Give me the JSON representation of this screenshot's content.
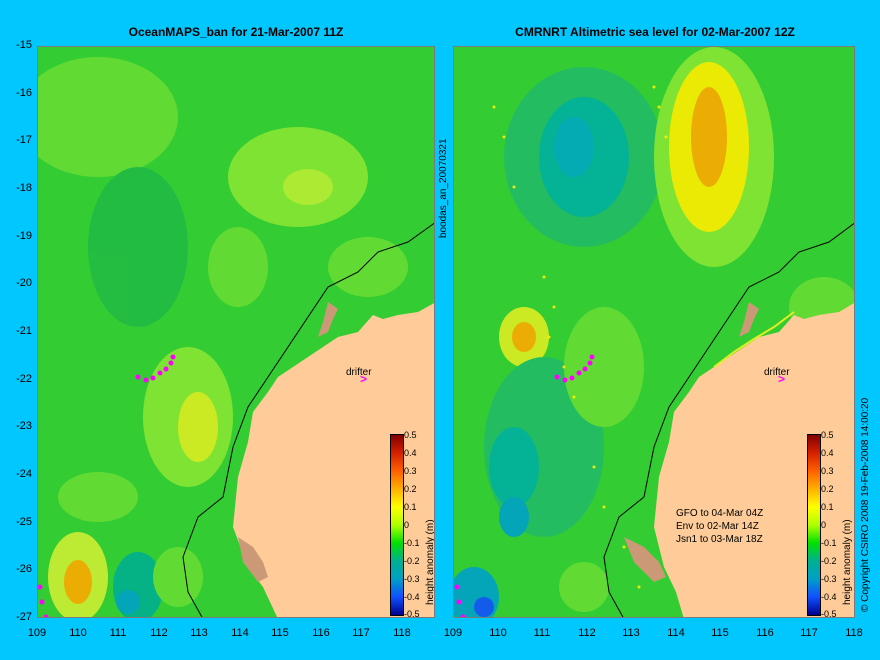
{
  "left_panel": {
    "title": "OceanMAPS_ban for 21-Mar-2007 11Z",
    "drifter_label": "drifter",
    "colorbar_label": "height anomaly (m)"
  },
  "right_panel": {
    "title": "CMRNRT Altimetric sea level  for 02-Mar-2007 12Z",
    "drifter_label": "drifter",
    "colorbar_label": "height anomaly (m)",
    "notes": [
      "GFO to 04-Mar 04Z",
      "Env to 02-Mar 14Z",
      "Jsn1 to 03-Mar 18Z"
    ]
  },
  "y_ticks": [
    "-15",
    "-16",
    "-17",
    "-18",
    "-19",
    "-20",
    "-21",
    "-22",
    "-23",
    "-24",
    "-25",
    "-26",
    "-27"
  ],
  "x_ticks": [
    "109",
    "110",
    "111",
    "112",
    "113",
    "114",
    "115",
    "116",
    "117",
    "118"
  ],
  "colorbar_ticks": [
    "0.5",
    "0.4",
    "0.3",
    "0.2",
    "0.1",
    "0",
    "-0.1",
    "-0.2",
    "-0.3",
    "-0.4",
    "-0.5"
  ],
  "middle_label": "boodas_an_20070321",
  "copyright": "© Copyright CSIRO 2008  19-Feb-2008 14:00:20",
  "colors": {
    "background": "#00c8ff",
    "land": "#ffcc99",
    "sea_base": "#33cc33",
    "drifter": "#ff00ff"
  }
}
